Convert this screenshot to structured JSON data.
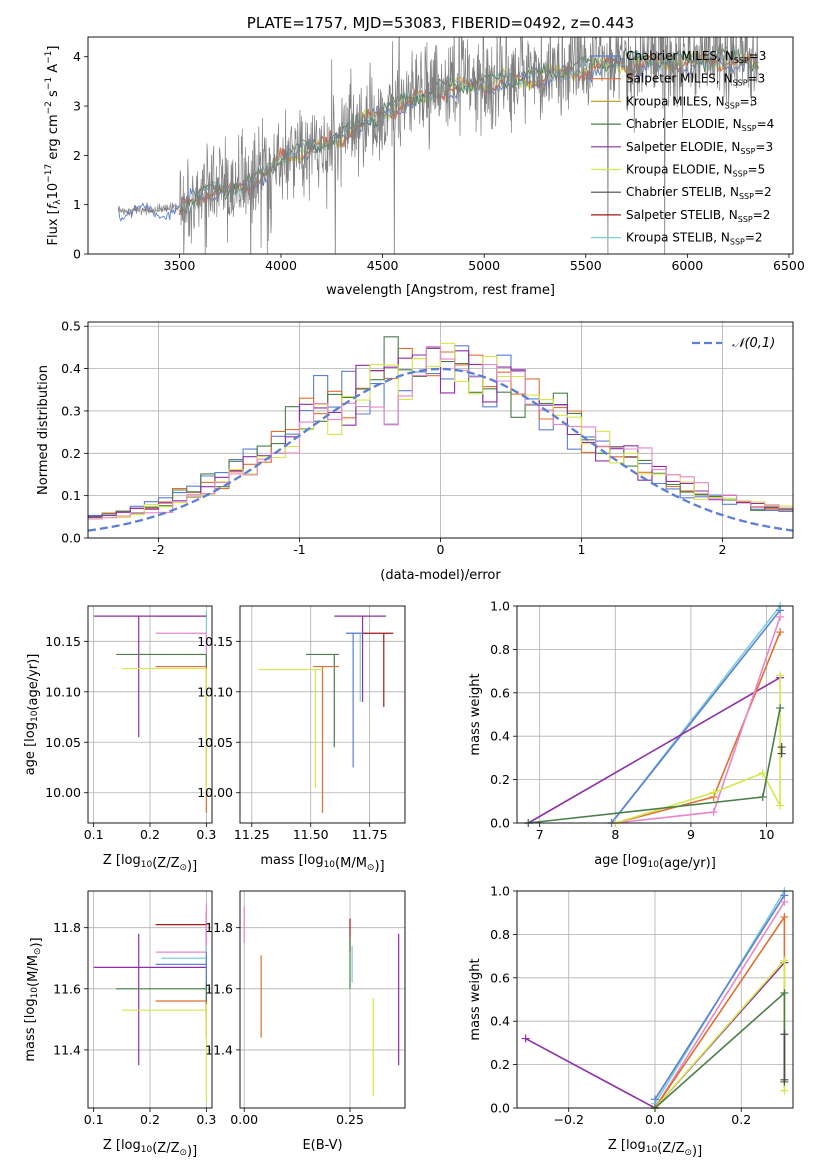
{
  "chart_data": [
    {
      "id": "spectrum",
      "type": "line",
      "title": "PLATE=1757, MJD=53083, FIBERID=0492, z=0.443",
      "xlabel": "wavelength [Angstrom, rest frame]",
      "ylabel": "Flux [f_λ 10^-17 erg cm^-2 s^-1 A^-1]",
      "xlim": [
        3050,
        6520
      ],
      "ylim": [
        0,
        4.4
      ],
      "xticks": [
        3500,
        4000,
        4500,
        5000,
        5500,
        6000,
        6500
      ],
      "yticks": [
        0,
        1,
        2,
        3,
        4
      ],
      "grid": false,
      "legend_position": "top-right",
      "legend": [
        {
          "label": "Chabrier MILES, N_SSP=3",
          "color": "#5b7fd6"
        },
        {
          "label": "Salpeter MILES, N_SSP=3",
          "color": "#e07030"
        },
        {
          "label": "Kroupa MILES, N_SSP=3",
          "color": "#c9a02a"
        },
        {
          "label": "Chabrier ELODIE, N_SSP=4",
          "color": "#4a7f4a"
        },
        {
          "label": "Salpeter ELODIE, N_SSP=3",
          "color": "#8e2fa8"
        },
        {
          "label": "Kroupa ELODIE, N_SSP=5",
          "color": "#d4e84a"
        },
        {
          "label": "Chabrier STELIB, N_SSP=2",
          "color": "#4a4a4a"
        },
        {
          "label": "Salpeter STELIB, N_SSP=2",
          "color": "#a01818"
        },
        {
          "label": "Kroupa STELIB, N_SSP=2",
          "color": "#7ccfd8"
        }
      ],
      "data_color": "#808080",
      "model_color": "#e8704a",
      "data_range": [
        3200,
        6350
      ],
      "continuum": [
        [
          3200,
          0.85
        ],
        [
          3300,
          0.9
        ],
        [
          3400,
          0.9
        ],
        [
          3500,
          0.95
        ],
        [
          3650,
          1.3
        ],
        [
          3800,
          1.35
        ],
        [
          3950,
          1.7
        ],
        [
          4000,
          2.0
        ],
        [
          4200,
          2.2
        ],
        [
          4400,
          2.7
        ],
        [
          4600,
          3.1
        ],
        [
          4800,
          3.4
        ],
        [
          5000,
          3.5
        ],
        [
          5200,
          3.6
        ],
        [
          5400,
          3.75
        ],
        [
          5600,
          3.9
        ],
        [
          5800,
          3.95
        ],
        [
          6000,
          3.95
        ],
        [
          6200,
          4.0
        ],
        [
          6350,
          3.9
        ]
      ]
    },
    {
      "id": "residuals",
      "type": "histogram",
      "xlabel": "(data-model)/error",
      "ylabel": "Normed distribution",
      "xlim": [
        -2.5,
        2.5
      ],
      "ylim": [
        0,
        0.51
      ],
      "xticks": [
        -2,
        -1,
        0,
        1,
        2
      ],
      "yticks": [
        0.0,
        0.1,
        0.2,
        0.3,
        0.4,
        0.5
      ],
      "grid": true,
      "legend": [
        {
          "label": "𝒩(0,1)",
          "color": "#5b7fd6"
        }
      ],
      "colors": [
        "#5b7fd6",
        "#e07030",
        "#4a7f4a",
        "#8e2fa8",
        "#d4e84a",
        "#e888c8"
      ]
    },
    {
      "id": "age-vs-z",
      "type": "errorbar",
      "xlabel": "Z [log10(Z/Z⊙)]",
      "ylabel": "age  [log10(age/yr)]",
      "xlim": [
        0.09,
        0.31
      ],
      "ylim": [
        9.97,
        10.185
      ],
      "xticks": [
        0.1,
        0.2,
        0.3
      ],
      "xtick_labels": [
        "0.1",
        "0.2",
        "0.3"
      ],
      "yticks": [
        10.0,
        10.05,
        10.1,
        10.15
      ],
      "ytick_labels": [
        "10.00",
        "10.05",
        "10.10",
        "10.15"
      ],
      "grid": true,
      "points": [
        {
          "x": 0.3,
          "y": 10.175,
          "xerr": [
            0.21,
            0.3
          ],
          "yerr": [
            10.085,
            10.18
          ],
          "color": "#7ccfd8"
        },
        {
          "x": 0.18,
          "y": 10.175,
          "xerr": [
            0.1,
            0.3
          ],
          "yerr": [
            10.055,
            10.175
          ],
          "color": "#8e2fa8"
        },
        {
          "x": 0.3,
          "y": 10.158,
          "xerr": [
            0.21,
            0.3
          ],
          "yerr": [
            10.13,
            10.158
          ],
          "color": "#e888c8"
        },
        {
          "x": 0.3,
          "y": 10.137,
          "xerr": [
            0.14,
            0.3
          ],
          "yerr": [
            10.12,
            10.137
          ],
          "color": "#4a7f4a"
        },
        {
          "x": 0.3,
          "y": 10.125,
          "xerr": [
            0.21,
            0.3
          ],
          "yerr": [
            9.98,
            10.125
          ],
          "color": "#e07030"
        },
        {
          "x": 0.3,
          "y": 10.123,
          "xerr": [
            0.15,
            0.3
          ],
          "yerr": [
            10.0,
            10.123
          ],
          "color": "#d4e84a"
        }
      ]
    },
    {
      "id": "age-vs-mass",
      "type": "errorbar",
      "xlabel": "mass [log10(M/M⊙)]",
      "ylabel": "",
      "xlim": [
        11.2,
        11.9
      ],
      "ylim": [
        9.97,
        10.185
      ],
      "xticks": [
        11.25,
        11.5,
        11.75
      ],
      "xtick_labels": [
        "11.25",
        "11.50",
        "11.75"
      ],
      "yticks": [
        10.0,
        10.05,
        10.1,
        10.15
      ],
      "ytick_labels": [
        "10.00",
        "10.05",
        "10.10",
        "10.15"
      ],
      "grid": true,
      "points": [
        {
          "x": 11.72,
          "y": 10.175,
          "xerr": [
            11.6,
            11.82
          ],
          "yerr": [
            10.09,
            10.175
          ],
          "color": "#8e2fa8"
        },
        {
          "x": 11.71,
          "y": 10.158,
          "xerr": [
            11.65,
            11.74
          ],
          "yerr": [
            10.09,
            10.158
          ],
          "color": "#7ccfd8"
        },
        {
          "x": 11.68,
          "y": 10.158,
          "xerr": [
            11.65,
            11.72
          ],
          "yerr": [
            10.025,
            10.158
          ],
          "color": "#5b7fd6"
        },
        {
          "x": 11.81,
          "y": 10.158,
          "xerr": [
            11.72,
            11.85
          ],
          "yerr": [
            10.085,
            10.158
          ],
          "color": "#a01818"
        },
        {
          "x": 11.6,
          "y": 10.137,
          "xerr": [
            11.48,
            11.62
          ],
          "yerr": [
            10.045,
            10.137
          ],
          "color": "#4a7f4a"
        },
        {
          "x": 11.55,
          "y": 10.125,
          "xerr": [
            11.51,
            11.62
          ],
          "yerr": [
            9.98,
            10.125
          ],
          "color": "#e07030"
        },
        {
          "x": 11.52,
          "y": 10.122,
          "xerr": [
            11.28,
            11.55
          ],
          "yerr": [
            10.005,
            10.122
          ],
          "color": "#d4e84a"
        }
      ]
    },
    {
      "id": "weight-vs-age",
      "type": "line",
      "xlabel": "age  [log10(age/yr)]",
      "ylabel": "mass weight",
      "xlim": [
        6.7,
        10.35
      ],
      "ylim": [
        0,
        1.0
      ],
      "xticks": [
        7,
        8,
        9,
        10
      ],
      "xtick_labels": [
        "7",
        "8",
        "9",
        "10"
      ],
      "yticks": [
        0.0,
        0.2,
        0.4,
        0.6,
        0.8,
        1.0
      ],
      "ytick_labels": [
        "0.0",
        "0.2",
        "0.4",
        "0.6",
        "0.8",
        "1.0"
      ],
      "grid": true,
      "series": [
        {
          "color": "#7ccfd8",
          "x": [
            7.95,
            10.18
          ],
          "y": [
            0.0,
            1.0
          ]
        },
        {
          "color": "#5b7fd6",
          "x": [
            7.95,
            10.18
          ],
          "y": [
            0.0,
            0.98
          ]
        },
        {
          "color": "#8e2fa8",
          "x": [
            6.85,
            10.18
          ],
          "y": [
            0.0,
            0.67
          ]
        },
        {
          "color": "#e07030",
          "x": [
            8.0,
            9.3,
            10.18
          ],
          "y": [
            0.0,
            0.12,
            0.88
          ]
        },
        {
          "color": "#e888c8",
          "x": [
            8.0,
            9.3,
            10.18
          ],
          "y": [
            0.0,
            0.05,
            0.95
          ]
        },
        {
          "color": "#d4e84a",
          "x": [
            8.0,
            9.3,
            9.95,
            10.18,
            10.18
          ],
          "y": [
            0.0,
            0.14,
            0.23,
            0.08,
            0.68
          ]
        },
        {
          "color": "#4a7f4a",
          "x": [
            6.85,
            9.95,
            10.18
          ],
          "y": [
            0.0,
            0.12,
            0.53
          ]
        },
        {
          "color": "#4a4a4a",
          "x": [
            10.2,
            10.2
          ],
          "y": [
            0.32,
            0.35
          ]
        }
      ]
    },
    {
      "id": "mass-vs-z",
      "type": "errorbar",
      "xlabel": "Z [log10(Z/Z⊙)]",
      "ylabel": "mass [log10(M/M⊙)]",
      "xlim": [
        0.09,
        0.31
      ],
      "ylim": [
        11.21,
        11.92
      ],
      "xticks": [
        0.1,
        0.2,
        0.3
      ],
      "xtick_labels": [
        "0.1",
        "0.2",
        "0.3"
      ],
      "yticks": [
        11.4,
        11.6,
        11.8
      ],
      "ytick_labels": [
        "11.4",
        "11.6",
        "11.8"
      ],
      "grid": true,
      "points": [
        {
          "x": 0.3,
          "y": 11.81,
          "xerr": [
            0.21,
            0.3
          ],
          "yerr": [
            11.72,
            11.85
          ],
          "color": "#a01818"
        },
        {
          "x": 0.3,
          "y": 11.72,
          "xerr": [
            0.21,
            0.3
          ],
          "yerr": [
            11.62,
            11.88
          ],
          "color": "#e888c8"
        },
        {
          "x": 0.3,
          "y": 11.7,
          "xerr": [
            0.22,
            0.3
          ],
          "yerr": [
            11.6,
            11.74
          ],
          "color": "#7ccfd8"
        },
        {
          "x": 0.18,
          "y": 11.67,
          "xerr": [
            0.1,
            0.3
          ],
          "yerr": [
            11.35,
            11.78
          ],
          "color": "#8e2fa8"
        },
        {
          "x": 0.3,
          "y": 11.68,
          "xerr": [
            0.21,
            0.3
          ],
          "yerr": [
            11.53,
            11.72
          ],
          "color": "#5b7fd6"
        },
        {
          "x": 0.3,
          "y": 11.6,
          "xerr": [
            0.14,
            0.3
          ],
          "yerr": [
            11.5,
            11.62
          ],
          "color": "#4a7f4a"
        },
        {
          "x": 0.3,
          "y": 11.56,
          "xerr": [
            0.21,
            0.3
          ],
          "yerr": [
            11.44,
            11.56
          ],
          "color": "#e07030"
        },
        {
          "x": 0.3,
          "y": 11.53,
          "xerr": [
            0.15,
            0.3
          ],
          "yerr": [
            11.23,
            11.55
          ],
          "color": "#d4e84a"
        }
      ]
    },
    {
      "id": "mass-vs-ebv",
      "type": "errorbar",
      "xlabel": "E(B-V)",
      "ylabel": "",
      "xlim": [
        -0.01,
        0.38
      ],
      "ylim": [
        11.21,
        11.92
      ],
      "xticks": [
        0.0,
        0.25
      ],
      "xtick_labels": [
        "0.00",
        "0.25"
      ],
      "yticks": [
        11.4,
        11.6,
        11.8
      ],
      "ytick_labels": [
        "11.4",
        "11.6",
        "11.8"
      ],
      "grid": true,
      "points": [
        {
          "x": 0.0,
          "y": 11.8,
          "yerr": [
            11.75,
            11.87
          ],
          "color": "#e888c8"
        },
        {
          "x": 0.04,
          "y": 11.6,
          "yerr": [
            11.44,
            11.71
          ],
          "color": "#e07030"
        },
        {
          "x": 0.25,
          "y": 11.8,
          "yerr": [
            11.72,
            11.83
          ],
          "color": "#a01818"
        },
        {
          "x": 0.25,
          "y": 11.65,
          "yerr": [
            11.6,
            11.77
          ],
          "color": "#4a7f4a"
        },
        {
          "x": 0.255,
          "y": 11.68,
          "yerr": [
            11.62,
            11.74
          ],
          "color": "#7ccfd8"
        },
        {
          "x": 0.305,
          "y": 11.45,
          "yerr": [
            11.25,
            11.57
          ],
          "color": "#d4e84a"
        },
        {
          "x": 0.365,
          "y": 11.6,
          "yerr": [
            11.35,
            11.78
          ],
          "color": "#8e2fa8"
        }
      ]
    },
    {
      "id": "weight-vs-z",
      "type": "line",
      "xlabel": "Z [log10(Z/Z⊙)]",
      "ylabel": "mass weight",
      "xlim": [
        -0.32,
        0.32
      ],
      "ylim": [
        0,
        1.0
      ],
      "xticks": [
        -0.2,
        0.0,
        0.2
      ],
      "xtick_labels": [
        "−0.2",
        "0.0",
        "0.2"
      ],
      "yticks": [
        0.0,
        0.2,
        0.4,
        0.6,
        0.8,
        1.0
      ],
      "ytick_labels": [
        "0.0",
        "0.2",
        "0.4",
        "0.6",
        "0.8",
        "1.0"
      ],
      "grid": true,
      "series": [
        {
          "color": "#8e2fa8",
          "x": [
            -0.3,
            0.0,
            0.3
          ],
          "y": [
            0.32,
            0.0,
            0.67
          ]
        },
        {
          "color": "#7ccfd8",
          "x": [
            0.0,
            0.3
          ],
          "y": [
            0.02,
            1.0
          ]
        },
        {
          "color": "#5b7fd6",
          "x": [
            0.0,
            0.3
          ],
          "y": [
            0.04,
            0.98
          ]
        },
        {
          "color": "#e888c8",
          "x": [
            0.0,
            0.3
          ],
          "y": [
            0.0,
            0.95
          ]
        },
        {
          "color": "#e07030",
          "x": [
            0.0,
            0.3,
            0.3
          ],
          "y": [
            0.0,
            0.88,
            0.12
          ]
        },
        {
          "color": "#d4e84a",
          "x": [
            0.0,
            0.3,
            0.3
          ],
          "y": [
            0.0,
            0.68,
            0.08
          ]
        },
        {
          "color": "#4a7f4a",
          "x": [
            0.0,
            0.3,
            0.3
          ],
          "y": [
            0.0,
            0.53,
            0.12
          ]
        },
        {
          "color": "#4a4a4a",
          "x": [
            0.3,
            0.3
          ],
          "y": [
            0.13,
            0.34
          ]
        }
      ]
    }
  ]
}
